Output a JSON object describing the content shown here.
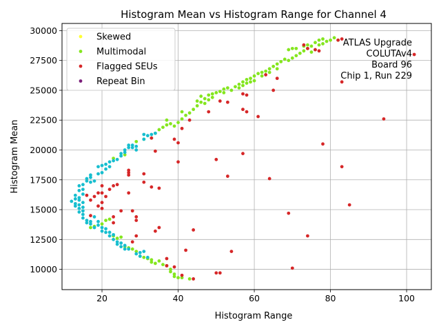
{
  "chart_data": {
    "type": "scatter",
    "title": "Histogram Mean vs Histogram Range for Channel 4",
    "xlabel": "Histogram Range",
    "ylabel": "Histogram Mean",
    "xlim": [
      9.5,
      106.5
    ],
    "ylim": [
      8300,
      30600
    ],
    "xticks": [
      "20",
      "40",
      "60",
      "80",
      "100"
    ],
    "yticks": [
      "10000",
      "12500",
      "15000",
      "17500",
      "20000",
      "22500",
      "25000",
      "27500",
      "30000"
    ],
    "grid": true,
    "legend_position": "top-left",
    "annotation": [
      "ATLAS Upgrade",
      "COLUTAv4",
      "Board 96",
      "Chip 1, Run 229"
    ],
    "series": [
      {
        "name": "Skewed",
        "color": "#ffff33",
        "points": []
      },
      {
        "name": "Multimodal",
        "color": "#84e61f",
        "points": [
          [
            17,
            13500
          ],
          [
            18,
            13600
          ],
          [
            20,
            13800
          ],
          [
            21,
            14100
          ],
          [
            22,
            14200
          ],
          [
            23,
            12800
          ],
          [
            24,
            12600
          ],
          [
            25,
            12700
          ],
          [
            26,
            11900
          ],
          [
            27,
            11800
          ],
          [
            28,
            11700
          ],
          [
            29,
            11500
          ],
          [
            30,
            11100
          ],
          [
            31,
            11000
          ],
          [
            32,
            10900
          ],
          [
            33,
            10800
          ],
          [
            33,
            10600
          ],
          [
            34,
            10500
          ],
          [
            35,
            10700
          ],
          [
            36,
            10400
          ],
          [
            37,
            10300
          ],
          [
            38,
            10000
          ],
          [
            38,
            9800
          ],
          [
            39,
            9600
          ],
          [
            39,
            9400
          ],
          [
            40,
            9300
          ],
          [
            41,
            9300
          ],
          [
            43,
            9200
          ],
          [
            23,
            19300
          ],
          [
            26,
            19600
          ],
          [
            29,
            20700
          ],
          [
            31,
            20900
          ],
          [
            33,
            21000
          ],
          [
            34,
            21400
          ],
          [
            35,
            21700
          ],
          [
            36,
            21900
          ],
          [
            37,
            22100
          ],
          [
            37,
            22500
          ],
          [
            38,
            22200
          ],
          [
            39,
            22000
          ],
          [
            40,
            22300
          ],
          [
            41,
            22600
          ],
          [
            41,
            23200
          ],
          [
            42,
            22900
          ],
          [
            43,
            23100
          ],
          [
            44,
            23400
          ],
          [
            45,
            23700
          ],
          [
            45,
            24100
          ],
          [
            46,
            24000
          ],
          [
            46,
            24500
          ],
          [
            47,
            24300
          ],
          [
            47,
            23900
          ],
          [
            48,
            24600
          ],
          [
            48,
            24200
          ],
          [
            49,
            24700
          ],
          [
            49,
            24400
          ],
          [
            50,
            24800
          ],
          [
            51,
            24900
          ],
          [
            52,
            25100
          ],
          [
            52,
            24800
          ],
          [
            53,
            25200
          ],
          [
            54,
            25000
          ],
          [
            55,
            25300
          ],
          [
            56,
            25500
          ],
          [
            56,
            25200
          ],
          [
            57,
            25700
          ],
          [
            57,
            25400
          ],
          [
            58,
            25900
          ],
          [
            58,
            25600
          ],
          [
            59,
            26000
          ],
          [
            59,
            25700
          ],
          [
            60,
            26200
          ],
          [
            60,
            25800
          ],
          [
            61,
            26400
          ],
          [
            62,
            26500
          ],
          [
            62,
            26200
          ],
          [
            63,
            26600
          ],
          [
            64,
            26800
          ],
          [
            64,
            26500
          ],
          [
            65,
            27000
          ],
          [
            66,
            27200
          ],
          [
            66,
            26800
          ],
          [
            67,
            27400
          ],
          [
            68,
            27600
          ],
          [
            69,
            27500
          ],
          [
            69,
            28400
          ],
          [
            70,
            27700
          ],
          [
            70,
            28500
          ],
          [
            71,
            27900
          ],
          [
            71,
            28500
          ],
          [
            72,
            28100
          ],
          [
            73,
            28300
          ],
          [
            73,
            28700
          ],
          [
            74,
            28500
          ],
          [
            74,
            28800
          ],
          [
            75,
            28200
          ],
          [
            75,
            28700
          ],
          [
            76,
            29000
          ],
          [
            76,
            28400
          ],
          [
            77,
            29200
          ],
          [
            77,
            28800
          ],
          [
            78,
            29300
          ],
          [
            78,
            28900
          ],
          [
            79,
            29100
          ],
          [
            80,
            29200
          ],
          [
            81,
            29400
          ],
          [
            82,
            29200
          ]
        ]
      },
      {
        "name": "Flagged SEUs",
        "color": "#d62728",
        "points": [
          [
            16,
            16200
          ],
          [
            17,
            15800
          ],
          [
            17,
            14500
          ],
          [
            18,
            16100
          ],
          [
            19,
            16400
          ],
          [
            19,
            15300
          ],
          [
            20,
            17000
          ],
          [
            20,
            16400
          ],
          [
            20,
            15600
          ],
          [
            20,
            15100
          ],
          [
            21,
            16100
          ],
          [
            22,
            16700
          ],
          [
            23,
            17000
          ],
          [
            23,
            14400
          ],
          [
            23,
            13900
          ],
          [
            24,
            17100
          ],
          [
            25,
            14900
          ],
          [
            27,
            18300
          ],
          [
            27,
            18100
          ],
          [
            27,
            17900
          ],
          [
            27,
            16400
          ],
          [
            28,
            14900
          ],
          [
            28,
            12300
          ],
          [
            29,
            14400
          ],
          [
            29,
            14100
          ],
          [
            29,
            12800
          ],
          [
            31,
            18000
          ],
          [
            31,
            17300
          ],
          [
            33,
            21000
          ],
          [
            33,
            16900
          ],
          [
            34,
            19900
          ],
          [
            34,
            13200
          ],
          [
            35,
            16800
          ],
          [
            35,
            13500
          ],
          [
            37,
            10900
          ],
          [
            37,
            10300
          ],
          [
            39,
            20900
          ],
          [
            39,
            10200
          ],
          [
            40,
            19000
          ],
          [
            40,
            20600
          ],
          [
            41,
            21800
          ],
          [
            41,
            9500
          ],
          [
            42,
            11600
          ],
          [
            43,
            22500
          ],
          [
            44,
            13300
          ],
          [
            44,
            9200
          ],
          [
            48,
            23200
          ],
          [
            50,
            19200
          ],
          [
            50,
            9700
          ],
          [
            51,
            24100
          ],
          [
            51,
            9700
          ],
          [
            53,
            24000
          ],
          [
            53,
            17800
          ],
          [
            54,
            11500
          ],
          [
            57,
            24700
          ],
          [
            57,
            23400
          ],
          [
            57,
            19700
          ],
          [
            58,
            24600
          ],
          [
            58,
            23200
          ],
          [
            61,
            22800
          ],
          [
            63,
            26300
          ],
          [
            64,
            17600
          ],
          [
            65,
            25000
          ],
          [
            66,
            26000
          ],
          [
            69,
            14700
          ],
          [
            70,
            10100
          ],
          [
            73,
            28800
          ],
          [
            74,
            12800
          ],
          [
            74,
            28500
          ],
          [
            76,
            28400
          ],
          [
            77,
            28300
          ],
          [
            78,
            20500
          ],
          [
            82,
            29200
          ],
          [
            83,
            29300
          ],
          [
            83,
            25700
          ],
          [
            83,
            18600
          ],
          [
            85,
            15400
          ],
          [
            94,
            22600
          ],
          [
            102,
            28000
          ]
        ]
      },
      {
        "name": "Repeat Bin",
        "color": "#7b1e7a",
        "points": []
      },
      {
        "name": "",
        "color": "#17becf",
        "points": [
          [
            12,
            15700
          ],
          [
            13,
            15900
          ],
          [
            13,
            15500
          ],
          [
            13,
            15300
          ],
          [
            13,
            16200
          ],
          [
            14,
            15800
          ],
          [
            14,
            15400
          ],
          [
            14,
            16000
          ],
          [
            14,
            16600
          ],
          [
            14,
            17000
          ],
          [
            14,
            15100
          ],
          [
            14,
            14800
          ],
          [
            15,
            14600
          ],
          [
            15,
            14300
          ],
          [
            15,
            14900
          ],
          [
            15,
            15200
          ],
          [
            15,
            15600
          ],
          [
            15,
            16300
          ],
          [
            15,
            16700
          ],
          [
            15,
            17100
          ],
          [
            16,
            14100
          ],
          [
            16,
            13900
          ],
          [
            16,
            17400
          ],
          [
            16,
            17600
          ],
          [
            17,
            13800
          ],
          [
            17,
            14000
          ],
          [
            17,
            17300
          ],
          [
            17,
            17700
          ],
          [
            17,
            17900
          ],
          [
            18,
            13500
          ],
          [
            18,
            14400
          ],
          [
            18,
            17400
          ],
          [
            19,
            13700
          ],
          [
            19,
            14000
          ],
          [
            19,
            18000
          ],
          [
            19,
            18600
          ],
          [
            20,
            13200
          ],
          [
            20,
            13500
          ],
          [
            20,
            18100
          ],
          [
            20,
            18700
          ],
          [
            21,
            13100
          ],
          [
            21,
            13400
          ],
          [
            21,
            18400
          ],
          [
            21,
            18800
          ],
          [
            22,
            12800
          ],
          [
            22,
            13100
          ],
          [
            22,
            18600
          ],
          [
            22,
            19000
          ],
          [
            23,
            12500
          ],
          [
            23,
            12900
          ],
          [
            23,
            19100
          ],
          [
            24,
            12300
          ],
          [
            24,
            12100
          ],
          [
            24,
            19200
          ],
          [
            25,
            11900
          ],
          [
            25,
            12200
          ],
          [
            25,
            19500
          ],
          [
            25,
            19700
          ],
          [
            26,
            11700
          ],
          [
            26,
            12000
          ],
          [
            26,
            19800
          ],
          [
            26,
            20000
          ],
          [
            27,
            11700
          ],
          [
            27,
            20200
          ],
          [
            27,
            20400
          ],
          [
            28,
            20200
          ],
          [
            28,
            20400
          ],
          [
            29,
            11300
          ],
          [
            29,
            20000
          ],
          [
            29,
            20300
          ],
          [
            30,
            11400
          ],
          [
            30,
            11100
          ],
          [
            31,
            20900
          ],
          [
            31,
            21300
          ],
          [
            31,
            11500
          ],
          [
            32,
            11000
          ],
          [
            32,
            21200
          ],
          [
            33,
            21300
          ],
          [
            34,
            21400
          ]
        ]
      }
    ]
  }
}
